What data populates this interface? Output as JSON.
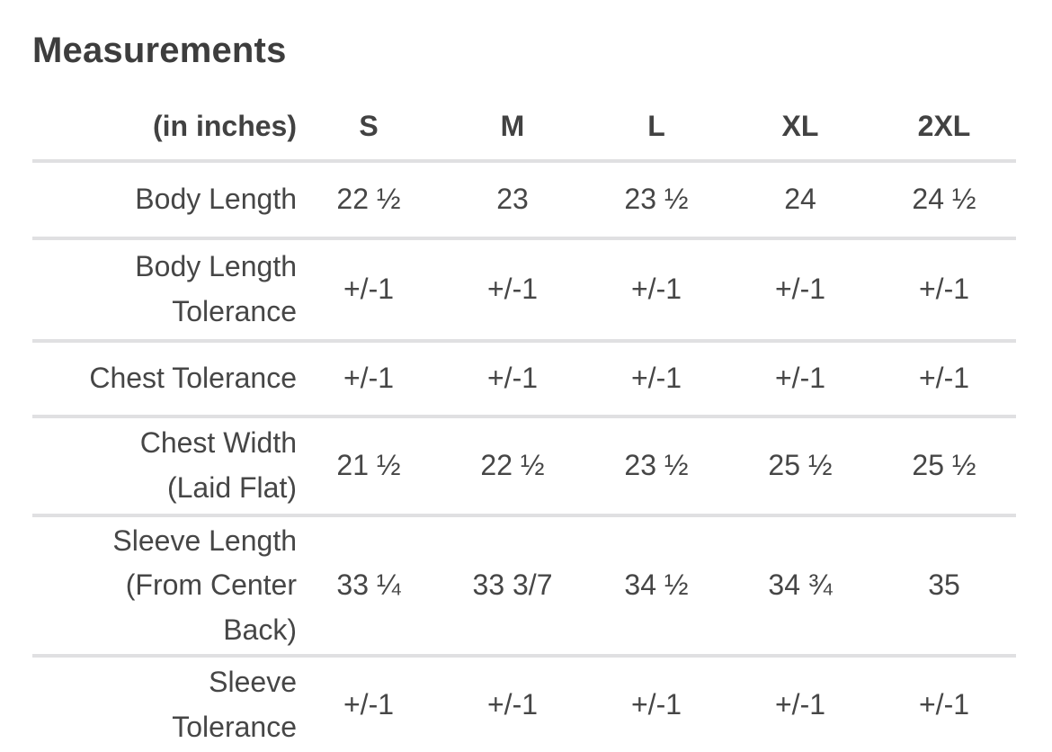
{
  "page": {
    "title": "Measurements"
  },
  "table": {
    "unit_label": "(in inches)",
    "columns": [
      "S",
      "M",
      "L",
      "XL",
      "2XL"
    ],
    "rows": [
      {
        "label": "Body Length",
        "values": [
          "22 ½",
          "23",
          "23 ½",
          "24",
          "24 ½"
        ]
      },
      {
        "label": "Body Length\nTolerance",
        "values": [
          "+/-1",
          "+/-1",
          "+/-1",
          "+/-1",
          "+/-1"
        ]
      },
      {
        "label": "Chest Tolerance",
        "values": [
          "+/-1",
          "+/-1",
          "+/-1",
          "+/-1",
          "+/-1"
        ]
      },
      {
        "label": "Chest Width\n(Laid Flat)",
        "values": [
          "21 ½",
          "22 ½",
          "23 ½",
          "25 ½",
          "25 ½"
        ]
      },
      {
        "label": "Sleeve Length\n(From Center\nBack)",
        "values": [
          "33 ¼",
          "33 3/7",
          "34 ½",
          "34 ¾",
          "35"
        ]
      },
      {
        "label": "Sleeve\nTolerance",
        "values": [
          "+/-1",
          "+/-1",
          "+/-1",
          "+/-1",
          "+/-1"
        ]
      }
    ],
    "colors": {
      "text": "#464646",
      "title_text": "#3d3d3d",
      "divider": "#e0e0e2",
      "background": "#ffffff"
    }
  }
}
